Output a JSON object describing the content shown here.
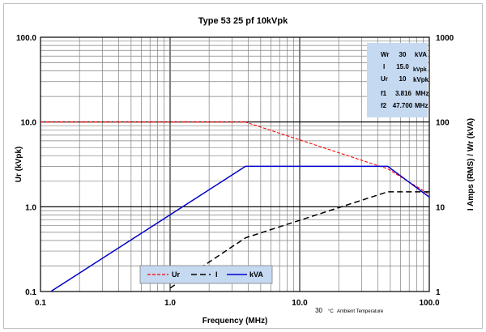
{
  "chart_data": {
    "type": "line",
    "title": "Type 53  25 pf   10kVpk",
    "xlabel": "Frequency (MHz)",
    "ylabel_left": "Ur (kVpk)",
    "ylabel_right": "I Amps (RMS) / Wr (kVA)",
    "x_scale": "log",
    "y_scale": "log",
    "xlim": [
      0.1,
      100
    ],
    "ylim_left": [
      0.1,
      100
    ],
    "ylim_right": [
      1,
      1000
    ],
    "grid": true,
    "x_ticks": [
      "0.1",
      "1.0",
      "10.0",
      "100.0"
    ],
    "y_ticks_left": [
      "0.1",
      "1.0",
      "10.0",
      "100.0"
    ],
    "y_ticks_right": [
      "1",
      "10",
      "100",
      "1000"
    ],
    "series": [
      {
        "name": "Ur",
        "axis": "left",
        "color": "#ff0000",
        "dash": "dashed",
        "x": [
          0.1,
          3.816,
          47.7,
          100
        ],
        "y": [
          10,
          10,
          2.8,
          1.4
        ]
      },
      {
        "name": "I",
        "axis": "right",
        "color": "#000000",
        "dash": "dashed",
        "x": [
          1,
          3.816,
          47.7,
          100
        ],
        "y": [
          1.1,
          4.3,
          15,
          15
        ]
      },
      {
        "name": "kVA",
        "axis": "right",
        "color": "#0000cc",
        "dash": "solid",
        "x": [
          0.12,
          3.816,
          47.7,
          100
        ],
        "y": [
          1,
          30,
          30,
          13
        ]
      }
    ],
    "legend_position": "bottom-center",
    "info_box": {
      "rows": [
        {
          "label": "Wr",
          "value": "30",
          "unit": "kVA"
        },
        {
          "label": "I",
          "value": "15.0",
          "unit": "Amps"
        },
        {
          "label": "Ur",
          "value": "10",
          "unit": "kVpk"
        },
        {
          "label": "f1",
          "value": "3.816",
          "unit": "MHz"
        },
        {
          "label": "f2",
          "value": "47.700",
          "unit": "MHz"
        }
      ]
    },
    "annotation": {
      "value": "30",
      "unit": "°C",
      "text": "Ambient Temperature"
    }
  },
  "colors": {
    "plot_background": "#ffffff",
    "info_box": "#c5d9f1",
    "legend_box": "#c5d9f1",
    "grid_major": "#000000",
    "grid_minor": "#7f7f7f"
  }
}
